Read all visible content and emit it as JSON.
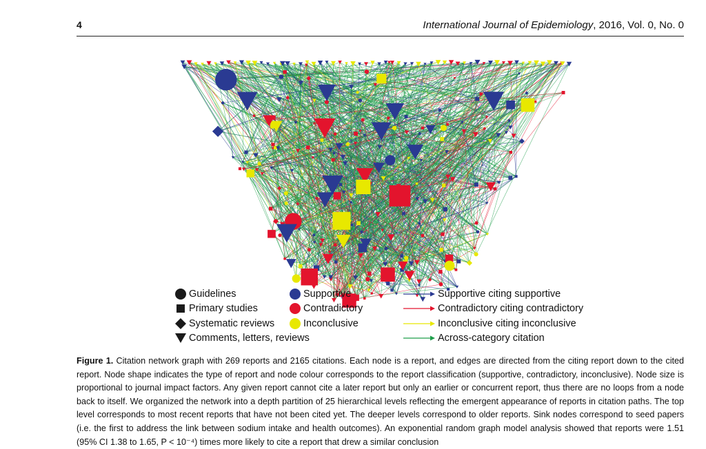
{
  "header": {
    "page_number": "4",
    "journal_italic": "International Journal of Epidemiology",
    "journal_rest": ", 2016, Vol. 0, No. 0"
  },
  "legend": {
    "shapes": [
      "Guidelines",
      "Primary studies",
      "Systematic reviews",
      "Comments, letters, reviews"
    ],
    "colors": [
      "Supportive",
      "Contradictory",
      "Inconclusive"
    ],
    "edges": [
      "Supportive citing supportive",
      "Contradictory citing contradictory",
      "Inconclusive citing inconclusive",
      "Across-category citation"
    ]
  },
  "colors": {
    "supportive": "#2a3a92",
    "contradictory": "#e3142d",
    "inconclusive": "#e8e800",
    "across": "#1e9e4a",
    "shape": "#1a1a1a"
  },
  "caption": {
    "label": "Figure 1.",
    "text": " Citation network graph with 269 reports and 2165 citations. Each node is a report, and edges are directed from the citing report down to the cited report. Node shape indicates the type of report and node colour corresponds to the report classification (supportive, contradictory, inconclusive). Node size is proportional to journal impact factors. Any given report cannot cite a later report but only an earlier or concurrent report, thus there are no loops from a node back to itself. We organized the network into a depth partition of 25 hierarchical levels reflecting the emergent appearance of reports in citation paths. The top level corresponds to most recent reports that have not been cited yet. The deeper levels correspond to older reports. Sink nodes correspond to seed papers (i.e. the first to address the link between sodium intake and health outcomes). An exponential random graph model analysis showed that reports were 1.51 (95% CI 1.38 to 1.65, P < 10⁻⁴) times more likely to cite a report that drew a similar conclusion"
  }
}
